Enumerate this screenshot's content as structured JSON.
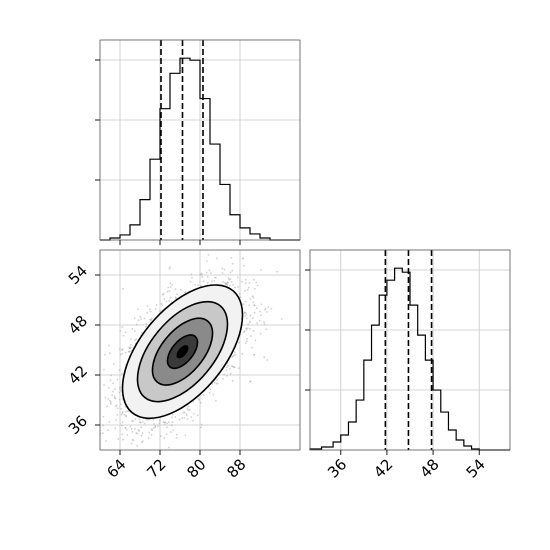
{
  "chart_data": {
    "type": "corner",
    "grid": true,
    "panels": [
      {
        "id": "hist-x",
        "type": "histogram",
        "position": "top-left",
        "xlim": [
          60,
          100
        ],
        "ticks_x": [
          64,
          72,
          80,
          88
        ],
        "tick_labels_x": [],
        "bin_edges": [
          60,
          62,
          64,
          66,
          68,
          70,
          72,
          74,
          76,
          78,
          80,
          82,
          84,
          86,
          88,
          90,
          92,
          94,
          96
        ],
        "counts": [
          0,
          2,
          5,
          15,
          40,
          80,
          130,
          165,
          180,
          178,
          140,
          95,
          55,
          25,
          12,
          6,
          2,
          0
        ],
        "quantile_lines": [
          72.2,
          76.5,
          80.6
        ]
      },
      {
        "id": "hist-y",
        "type": "histogram",
        "position": "bottom-right",
        "xlim": [
          32,
          58
        ],
        "ticks_x": [
          36,
          42,
          48,
          54
        ],
        "tick_labels_x": [
          "36",
          "42",
          "48",
          "54"
        ],
        "bin_edges": [
          32,
          33.5,
          35,
          36,
          37,
          38,
          39,
          40,
          41,
          42,
          43,
          44,
          45,
          46,
          47,
          48,
          49,
          50,
          51,
          52,
          53,
          54,
          55
        ],
        "counts": [
          1,
          3,
          8,
          15,
          28,
          50,
          90,
          125,
          155,
          170,
          182,
          178,
          145,
          115,
          90,
          60,
          38,
          20,
          10,
          4,
          1,
          0
        ],
        "quantile_lines": [
          41.8,
          44.8,
          47.8
        ]
      },
      {
        "id": "joint",
        "type": "scatter-contour",
        "position": "bottom-left",
        "xlim": [
          60,
          100
        ],
        "ylim": [
          33,
          57
        ],
        "ticks_x": [
          64,
          72,
          80,
          88
        ],
        "tick_labels_x": [
          "64",
          "72",
          "80",
          "88"
        ],
        "ticks_y": [
          36,
          42,
          48,
          54
        ],
        "tick_labels_y": [
          "36",
          "42",
          "48",
          "54"
        ],
        "mean": [
          76.5,
          44.8
        ],
        "std": [
          6,
          4
        ],
        "correlation": 0.55,
        "n_points": 3000,
        "contour_levels_sigma": [
          0.5,
          1.0,
          1.5,
          2.0
        ]
      }
    ]
  }
}
